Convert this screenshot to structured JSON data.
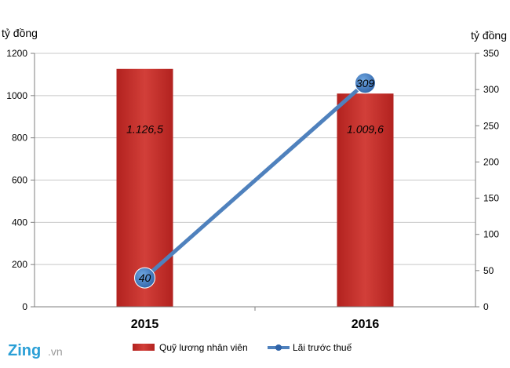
{
  "chart_data": {
    "type": "bar",
    "categories": [
      "2015",
      "2016"
    ],
    "series": [
      {
        "name": "Quỹ lương nhân viên",
        "type": "bar",
        "axis": "left",
        "values": [
          1126.5,
          1009.6
        ],
        "labels": [
          "1.126,5",
          "1.009,6"
        ],
        "color": "#c0302c"
      },
      {
        "name": "Lãi trước thuế",
        "type": "line",
        "axis": "right",
        "values": [
          40,
          309
        ],
        "labels": [
          "40",
          "309"
        ],
        "color": "#4f81bd"
      }
    ],
    "ylabel_left": "tỷ đồng",
    "ylabel_right": "tỷ đồng",
    "ylim_left": [
      0,
      1200
    ],
    "yticks_left": [
      0,
      200,
      400,
      600,
      800,
      1000,
      1200
    ],
    "ylim_right": [
      0,
      350
    ],
    "yticks_right": [
      0,
      50,
      100,
      150,
      200,
      250,
      300,
      350
    ],
    "grid": true,
    "legend_position": "bottom"
  },
  "brand": {
    "logo_main": "Zing",
    "logo_sub": ".vn"
  }
}
